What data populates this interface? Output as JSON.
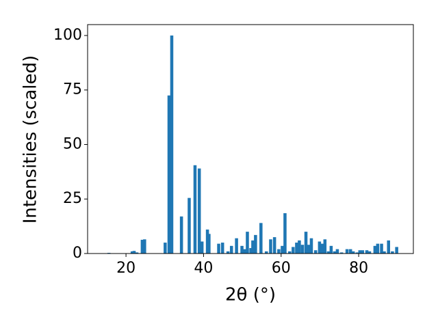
{
  "chart_data": {
    "type": "bar",
    "xlabel": "2θ (°)",
    "ylabel": "Intensities (scaled)",
    "color": "#1f77b4",
    "x": [
      15.6,
      21.6,
      22.1,
      22.8,
      24.2,
      24.8,
      30.1,
      31.1,
      31.8,
      34.3,
      36.3,
      37.8,
      38.9,
      39.6,
      41.0,
      41.4,
      43.9,
      44.9,
      46.3,
      47.2,
      48.5,
      49.9,
      50.6,
      51.3,
      52.2,
      52.7,
      53.4,
      54.8,
      56.2,
      57.3,
      58.3,
      59.4,
      60.3,
      61.0,
      62.2,
      63.1,
      64.0,
      64.7,
      65.5,
      66.4,
      67.1,
      67.8,
      68.9,
      69.9,
      70.6,
      71.3,
      72.2,
      72.9,
      73.8,
      74.5,
      75.6,
      77.0,
      77.9,
      78.6,
      79.6,
      80.3,
      81.0,
      82.1,
      82.8,
      84.2,
      84.9,
      85.9,
      86.6,
      87.7,
      88.7,
      89.8
    ],
    "values": [
      0.3,
      1,
      1.2,
      0.5,
      6.3,
      6.5,
      5,
      72.5,
      100,
      17,
      25.5,
      40.5,
      39,
      5.5,
      11,
      9,
      4.5,
      5,
      1,
      3.5,
      7,
      3.5,
      2,
      10,
      2.5,
      6,
      8.5,
      14,
      1,
      6.5,
      7.5,
      2,
      3.5,
      18.5,
      1,
      3,
      5,
      6,
      4,
      10,
      4,
      7,
      1.5,
      5.5,
      4.5,
      6.5,
      1,
      3.5,
      1,
      2,
      0.5,
      2,
      2,
      1,
      0.5,
      1.5,
      1.5,
      1.5,
      1,
      3.5,
      4.5,
      4.5,
      1,
      6,
      1,
      3
    ],
    "xlim": [
      10.1,
      94.1
    ],
    "xticks": [
      20,
      40,
      60,
      80
    ],
    "ylim": [
      0,
      105
    ],
    "yticks": [
      0,
      25,
      50,
      75,
      100
    ]
  }
}
